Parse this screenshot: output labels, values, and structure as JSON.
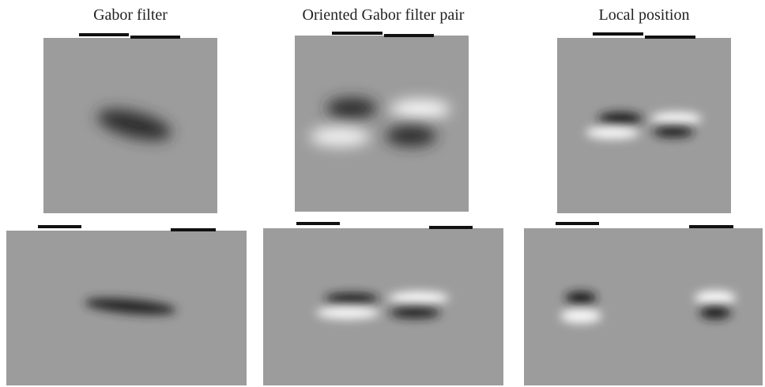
{
  "columns": [
    {
      "title": "Gabor filter"
    },
    {
      "title": "Oriented Gabor filter pair"
    },
    {
      "title": "Local position"
    }
  ]
}
